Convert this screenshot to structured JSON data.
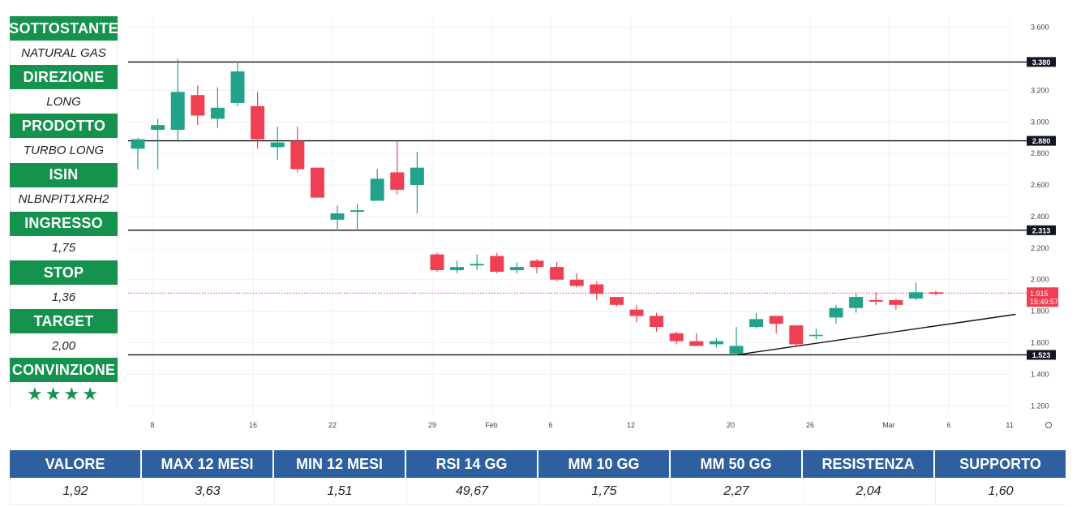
{
  "side_panel": [
    {
      "label": "SOTTOSTANTE",
      "value": "NATURAL GAS"
    },
    {
      "label": "DIREZIONE",
      "value": "LONG"
    },
    {
      "label": "PRODOTTO",
      "value": "TURBO LONG"
    },
    {
      "label": "ISIN",
      "value": "NLBNPIT1XRH2"
    },
    {
      "label": "INGRESSO",
      "value": "1,75"
    },
    {
      "label": "STOP",
      "value": "1,36"
    },
    {
      "label": "TARGET",
      "value": "2,00"
    },
    {
      "label": "CONVINZIONE",
      "value": "★★★★"
    }
  ],
  "table": {
    "headers": [
      "VALORE",
      "MAX 12 MESI",
      "MIN 12 MESI",
      "RSI 14 GG",
      "MM 10 GG",
      "MM 50 GG",
      "RESISTENZA",
      "SUPPORTO"
    ],
    "values": [
      "1,92",
      "3,63",
      "1,51",
      "49,67",
      "1,75",
      "2,27",
      "2,04",
      "1,60"
    ]
  },
  "colors": {
    "up": "#22a28a",
    "down": "#ef3f52",
    "green_header": "#14924e",
    "blue_header": "#2e5f9e"
  },
  "chart_data": {
    "type": "candlestick",
    "x_tick_labels": [
      "8",
      "16",
      "22",
      "29",
      "Feb",
      "6",
      "12",
      "20",
      "26",
      "Mar",
      "6",
      "11"
    ],
    "y_ticks": [
      "1.200",
      "1.400",
      "1.600",
      "1.800",
      "2.000",
      "2.200",
      "2.400",
      "2.600",
      "2.800",
      "3.000",
      "3.200",
      "3.600"
    ],
    "ylim": [
      1.15,
      3.67
    ],
    "horizontal_levels": [
      {
        "value": 3.38,
        "label": "3.380"
      },
      {
        "value": 2.88,
        "label": "2.880"
      },
      {
        "value": 2.313,
        "label": "2.313"
      },
      {
        "value": 1.523,
        "label": "1.523"
      }
    ],
    "current_price": {
      "value": 1.915,
      "label": "1.915",
      "countdown": "15:49:57"
    },
    "trendline": [
      {
        "i": 30,
        "v": 1.523
      },
      {
        "i": 44,
        "v": 1.78
      }
    ],
    "candles": [
      {
        "o": 2.83,
        "h": 2.9,
        "l": 2.7,
        "c": 2.89
      },
      {
        "o": 2.95,
        "h": 3.02,
        "l": 2.7,
        "c": 2.98
      },
      {
        "o": 2.95,
        "h": 3.4,
        "l": 2.88,
        "c": 3.19
      },
      {
        "o": 3.17,
        "h": 3.23,
        "l": 2.98,
        "c": 3.04
      },
      {
        "o": 3.02,
        "h": 3.22,
        "l": 2.96,
        "c": 3.09
      },
      {
        "o": 3.12,
        "h": 3.38,
        "l": 3.1,
        "c": 3.32
      },
      {
        "o": 3.1,
        "h": 3.19,
        "l": 2.83,
        "c": 2.89
      },
      {
        "o": 2.84,
        "h": 2.97,
        "l": 2.76,
        "c": 2.87
      },
      {
        "o": 2.88,
        "h": 2.97,
        "l": 2.68,
        "c": 2.7
      },
      {
        "o": 2.71,
        "h": 2.71,
        "l": 2.52,
        "c": 2.52
      },
      {
        "o": 2.38,
        "h": 2.47,
        "l": 2.31,
        "c": 2.42
      },
      {
        "o": 2.43,
        "h": 2.48,
        "l": 2.32,
        "c": 2.44
      },
      {
        "o": 2.5,
        "h": 2.7,
        "l": 2.5,
        "c": 2.64
      },
      {
        "o": 2.68,
        "h": 2.88,
        "l": 2.54,
        "c": 2.57
      },
      {
        "o": 2.6,
        "h": 2.81,
        "l": 2.42,
        "c": 2.71
      },
      {
        "o": 2.16,
        "h": 2.17,
        "l": 2.05,
        "c": 2.06
      },
      {
        "o": 2.06,
        "h": 2.12,
        "l": 2.04,
        "c": 2.08
      },
      {
        "o": 2.09,
        "h": 2.16,
        "l": 2.06,
        "c": 2.1
      },
      {
        "o": 2.15,
        "h": 2.17,
        "l": 2.04,
        "c": 2.05
      },
      {
        "o": 2.06,
        "h": 2.11,
        "l": 2.04,
        "c": 2.08
      },
      {
        "o": 2.12,
        "h": 2.13,
        "l": 2.04,
        "c": 2.08
      },
      {
        "o": 2.08,
        "h": 2.11,
        "l": 1.99,
        "c": 2.0
      },
      {
        "o": 2.0,
        "h": 2.04,
        "l": 1.95,
        "c": 1.96
      },
      {
        "o": 1.97,
        "h": 1.99,
        "l": 1.87,
        "c": 1.91
      },
      {
        "o": 1.89,
        "h": 1.89,
        "l": 1.83,
        "c": 1.84
      },
      {
        "o": 1.81,
        "h": 1.84,
        "l": 1.73,
        "c": 1.77
      },
      {
        "o": 1.77,
        "h": 1.79,
        "l": 1.67,
        "c": 1.7
      },
      {
        "o": 1.66,
        "h": 1.67,
        "l": 1.59,
        "c": 1.61
      },
      {
        "o": 1.61,
        "h": 1.66,
        "l": 1.58,
        "c": 1.58
      },
      {
        "o": 1.59,
        "h": 1.63,
        "l": 1.57,
        "c": 1.61
      },
      {
        "o": 1.53,
        "h": 1.7,
        "l": 1.52,
        "c": 1.58
      },
      {
        "o": 1.7,
        "h": 1.79,
        "l": 1.69,
        "c": 1.75
      },
      {
        "o": 1.77,
        "h": 1.77,
        "l": 1.66,
        "c": 1.72
      },
      {
        "o": 1.71,
        "h": 1.71,
        "l": 1.58,
        "c": 1.59
      },
      {
        "o": 1.65,
        "h": 1.69,
        "l": 1.62,
        "c": 1.65
      },
      {
        "o": 1.76,
        "h": 1.84,
        "l": 1.72,
        "c": 1.82
      },
      {
        "o": 1.82,
        "h": 1.91,
        "l": 1.79,
        "c": 1.89
      },
      {
        "o": 1.87,
        "h": 1.92,
        "l": 1.84,
        "c": 1.86
      },
      {
        "o": 1.87,
        "h": 1.88,
        "l": 1.81,
        "c": 1.84
      },
      {
        "o": 1.88,
        "h": 1.98,
        "l": 1.87,
        "c": 1.92
      },
      {
        "o": 1.92,
        "h": 1.93,
        "l": 1.9,
        "c": 1.91
      }
    ]
  }
}
